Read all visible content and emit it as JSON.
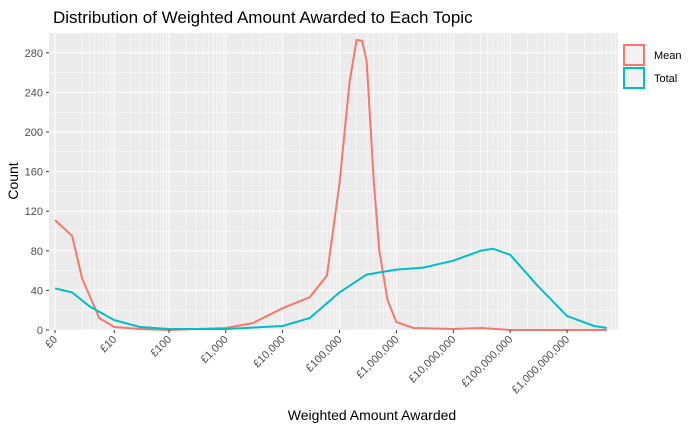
{
  "chart_data": {
    "type": "line",
    "title": "Distribution of Weighted Amount Awarded to Each Topic",
    "xlabel": "Weighted Amount Awarded",
    "ylabel": "Count",
    "x_scale": "log10(1+x)",
    "xlim": [
      0,
      10
    ],
    "ylim": [
      0,
      300
    ],
    "x_tick_values": [
      0,
      10,
      100,
      1000,
      10000,
      100000,
      1000000,
      10000000,
      100000000,
      1000000000
    ],
    "x_tick_labels": [
      "£0",
      "£10",
      "£100",
      "£1,000",
      "£10,000",
      "£100,000",
      "£1,000,000",
      "£10,000,000",
      "£100,000,000",
      "£1,000,000,000"
    ],
    "y_ticks": [
      0,
      40,
      80,
      120,
      160,
      200,
      240,
      280
    ],
    "y_tick_labels": [
      "0",
      "40",
      "80",
      "120",
      "160",
      "200",
      "240",
      "280"
    ],
    "grid": true,
    "legend_position": "top-right",
    "series": [
      {
        "name": "Mean",
        "color": "#F8766D",
        "x": [
          0,
          1,
          2,
          5,
          10,
          30,
          100,
          1000,
          3000,
          10000,
          30000,
          60000,
          100000,
          150000,
          200000,
          250000,
          300000,
          400000,
          500000,
          700000,
          1000000,
          2000000,
          10000000,
          30000000,
          100000000,
          1000000000,
          5000000000
        ],
        "y": [
          111,
          95,
          52,
          12,
          3,
          1,
          0,
          2,
          7,
          22,
          33,
          55,
          148,
          250,
          293,
          292,
          272,
          150,
          80,
          30,
          8,
          2,
          1,
          2,
          0,
          0,
          0
        ]
      },
      {
        "name": "Total",
        "color": "#00BFC4",
        "x": [
          0,
          1,
          3,
          10,
          30,
          100,
          1000,
          10000,
          30000,
          100000,
          300000,
          1000000,
          3000000,
          10000000,
          30000000,
          50000000,
          100000000,
          300000000,
          1000000000,
          3000000000,
          5000000000
        ],
        "y": [
          42,
          38,
          24,
          10,
          3,
          1,
          1,
          4,
          12,
          38,
          56,
          61,
          63,
          70,
          80,
          82,
          76,
          45,
          14,
          4,
          2
        ]
      }
    ]
  }
}
